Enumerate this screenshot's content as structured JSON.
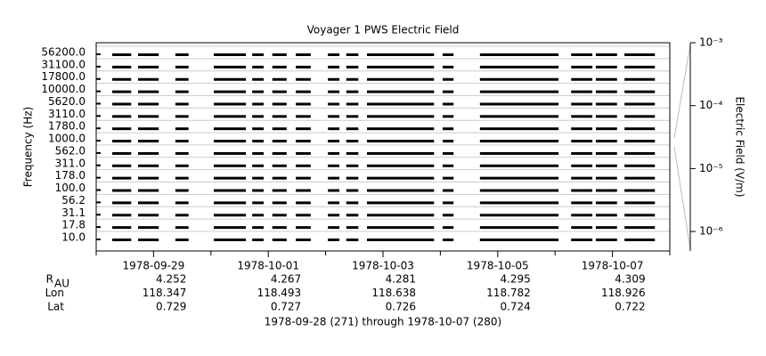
{
  "chart_data": {
    "type": "coverage",
    "title": "Voyager 1 PWS Electric Field",
    "y_label": "Frequency (Hz)",
    "y2_label": "Electric Field (V/m)",
    "channels": [
      "10.0",
      "17.8",
      "31.1",
      "56.2",
      "100.0",
      "178.0",
      "311.0",
      "562.0",
      "1000.0",
      "1780.0",
      "3110.0",
      "5620.0",
      "10000.0",
      "17800.0",
      "31100.0",
      "56200.0"
    ],
    "segments": [
      [
        271.28,
        271.61
      ],
      [
        271.73,
        272.09
      ],
      [
        272.38,
        272.61
      ],
      [
        273.05,
        273.61
      ],
      [
        273.72,
        273.92
      ],
      [
        274.07,
        274.32
      ],
      [
        274.48,
        274.74
      ],
      [
        275.04,
        275.24
      ],
      [
        275.36,
        275.57
      ],
      [
        275.72,
        276.89
      ],
      [
        277.04,
        277.23
      ],
      [
        277.69,
        279.06
      ],
      [
        279.28,
        279.65
      ],
      [
        279.71,
        280.08
      ],
      [
        280.21,
        280.74
      ]
    ],
    "color": "#000000",
    "xlim": [
      271,
      281
    ],
    "xticks": [
      {
        "value": 272,
        "label": "1978-09-29"
      },
      {
        "value": 274,
        "label": "1978-10-01"
      },
      {
        "value": 276,
        "label": "1978-10-03"
      },
      {
        "value": 278,
        "label": "1978-10-05"
      },
      {
        "value": 280,
        "label": "1978-10-07"
      }
    ],
    "xminorticks": [
      271,
      273,
      275,
      277,
      279,
      281
    ],
    "y2lim": [
      4.9e-07,
      0.001
    ],
    "y2log": true,
    "y2ticks": [
      {
        "value": 0.001,
        "label": "10⁻³"
      },
      {
        "value": 0.0001,
        "label": "10⁻⁴"
      },
      {
        "value": 1e-05,
        "label": "10⁻⁵"
      },
      {
        "value": 1e-06,
        "label": "10⁻⁶"
      }
    ],
    "ephemeris": [
      {
        "label": "R",
        "sub": "AU",
        "values": [
          4.252,
          4.267,
          4.281,
          4.295,
          4.309
        ],
        "value_labels": [
          "4.252",
          "4.267",
          "4.281",
          "4.295",
          "4.309"
        ]
      },
      {
        "label": "Lon",
        "values": [
          118.347,
          118.493,
          118.638,
          118.782,
          118.926
        ],
        "value_labels": [
          "118.347",
          "118.493",
          "118.638",
          "118.782",
          "118.926"
        ]
      },
      {
        "label": "Lat",
        "values": [
          0.729,
          0.727,
          0.726,
          0.724,
          0.722
        ],
        "value_labels": [
          "0.729",
          "0.727",
          "0.726",
          "0.724",
          "0.722"
        ]
      }
    ],
    "footer": "1978-09-28 (271) through 1978-10-07 (280)"
  }
}
